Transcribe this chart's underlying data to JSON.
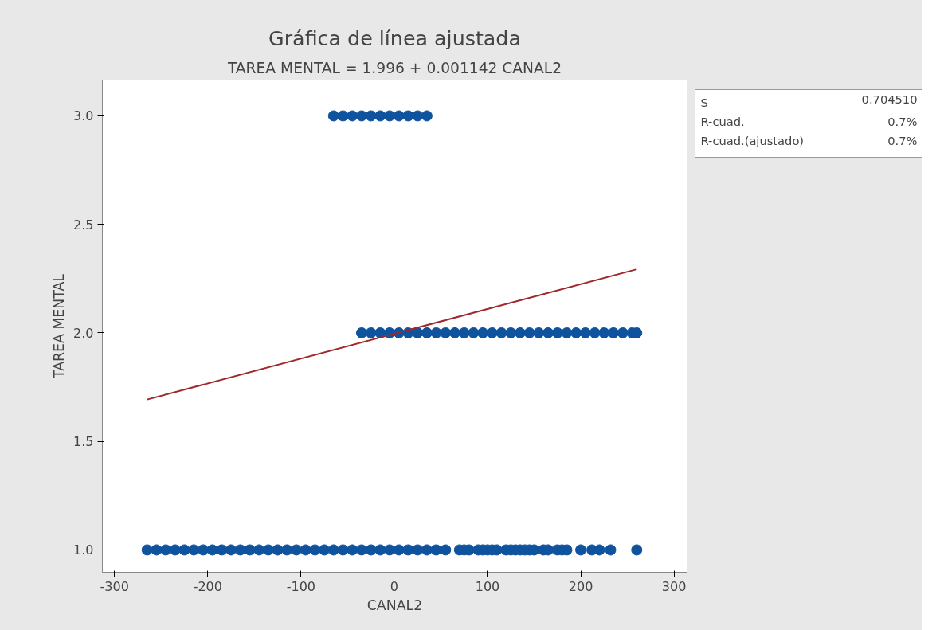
{
  "chart_data": {
    "type": "scatter",
    "title": "Gráfica de línea ajustada",
    "subtitle": "TAREA MENTAL = 1.996 + 0.001142 CANAL2",
    "xlabel": "CANAL2",
    "ylabel": "TAREA MENTAL",
    "annotations": [
      "S",
      "0.704510",
      "R-cuad.",
      "0.7%",
      "R-cuad.(ajustado)",
      "0.7%"
    ],
    "xlim": [
      -313,
      314
    ],
    "ylim": [
      0.897,
      3.165
    ],
    "xticks": [
      -300,
      -200,
      -100,
      0,
      100,
      200,
      300
    ],
    "yticks": [
      {
        "value": 1,
        "label": "1.0"
      },
      {
        "value": 1.5,
        "label": "1.5"
      },
      {
        "value": 2,
        "label": "2.0"
      },
      {
        "value": 2.5,
        "label": "2.5"
      },
      {
        "value": 3,
        "label": "3.0"
      }
    ],
    "grid": false,
    "marker": "circle",
    "series": [
      {
        "color": "#0f539e",
        "x": [
          -265,
          -255,
          -245,
          -235,
          -225,
          -215,
          -205,
          -195,
          -185,
          -175,
          -165,
          -155,
          -145,
          -135,
          -125,
          -115,
          -105,
          -95,
          -85,
          -75,
          -65,
          -55,
          -45,
          -35,
          -25,
          -15,
          -5,
          5,
          15,
          25,
          35,
          45,
          55,
          70,
          75,
          80,
          90,
          95,
          100,
          105,
          110,
          120,
          125,
          130,
          135,
          140,
          145,
          150,
          160,
          165,
          175,
          180,
          185,
          200,
          212,
          220,
          232,
          260
        ],
        "values": [
          1,
          1,
          1,
          1,
          1,
          1,
          1,
          1,
          1,
          1,
          1,
          1,
          1,
          1,
          1,
          1,
          1,
          1,
          1,
          1,
          1,
          1,
          1,
          1,
          1,
          1,
          1,
          1,
          1,
          1,
          1,
          1,
          1,
          1,
          1,
          1,
          1,
          1,
          1,
          1,
          1,
          1,
          1,
          1,
          1,
          1,
          1,
          1,
          1,
          1,
          1,
          1,
          1,
          1,
          1,
          1,
          1,
          1
        ]
      },
      {
        "color": "#0f539e",
        "x": [
          -35,
          -25,
          -15,
          -5,
          5,
          15,
          25,
          35,
          45,
          55,
          65,
          75,
          85,
          95,
          105,
          115,
          125,
          135,
          145,
          155,
          165,
          175,
          185,
          195,
          205,
          215,
          225,
          235,
          245,
          255,
          260
        ],
        "values": [
          2,
          2,
          2,
          2,
          2,
          2,
          2,
          2,
          2,
          2,
          2,
          2,
          2,
          2,
          2,
          2,
          2,
          2,
          2,
          2,
          2,
          2,
          2,
          2,
          2,
          2,
          2,
          2,
          2,
          2,
          2
        ]
      },
      {
        "color": "#0f539e",
        "x": [
          -65,
          -55,
          -45,
          -35,
          -25,
          -15,
          -5,
          5,
          15,
          25,
          35
        ],
        "values": [
          3,
          3,
          3,
          3,
          3,
          3,
          3,
          3,
          3,
          3,
          3
        ]
      },
      {
        "type": "line",
        "color": "#a0282c",
        "line_style": "solid",
        "marker": "none",
        "x": [
          -265,
          260
        ],
        "values": [
          1.693,
          2.293
        ]
      }
    ]
  }
}
